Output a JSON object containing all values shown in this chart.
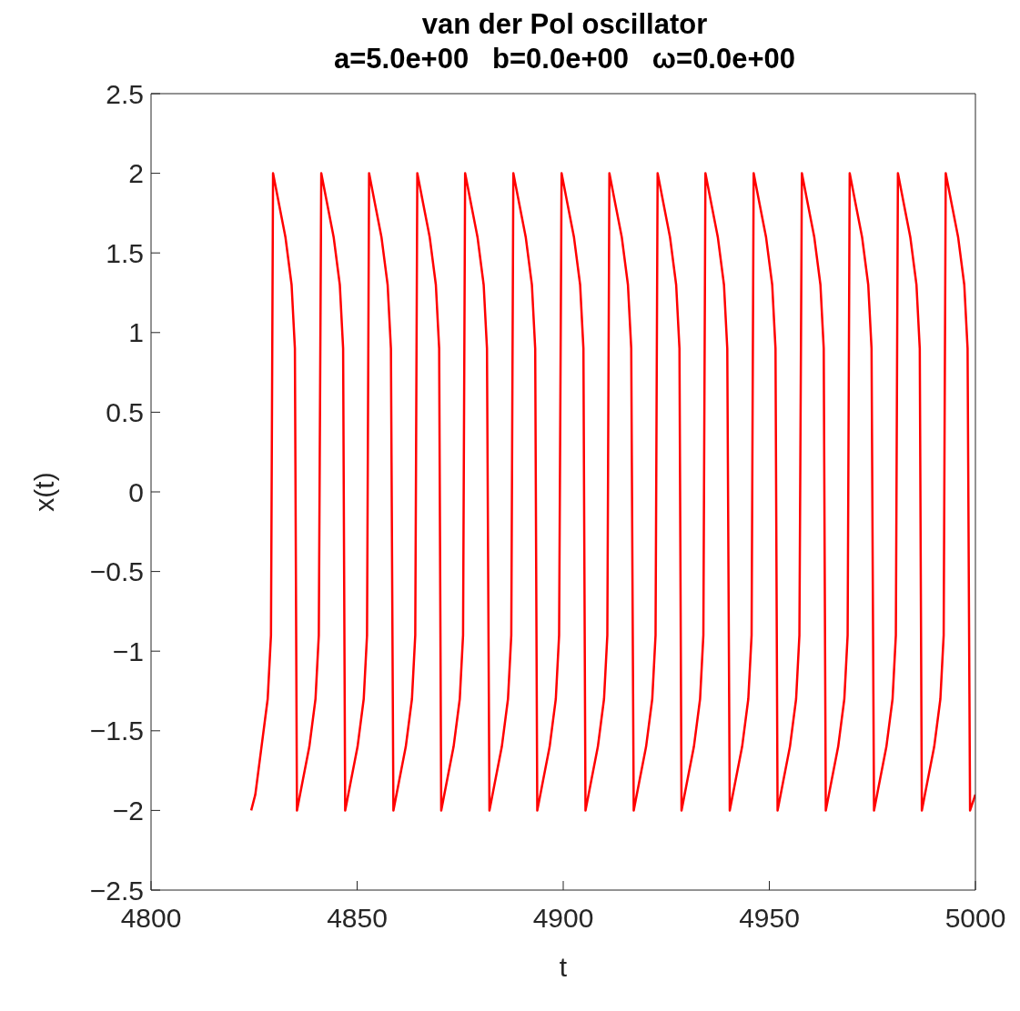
{
  "chart_data": {
    "type": "line",
    "title": "van der Pol oscillator",
    "subtitle": "a=5.0e+00   b=0.0e+00   ω=0.0e+00",
    "xlabel": "t",
    "ylabel": "x(t)",
    "xlim": [
      4800,
      5000
    ],
    "xticks": [
      4800,
      4850,
      4900,
      4950,
      5000
    ],
    "ylim": [
      -2.5,
      2.5
    ],
    "yticks": [
      {
        "value": -2.5,
        "label": "−2.5"
      },
      {
        "value": -2,
        "label": "−2"
      },
      {
        "value": -1.5,
        "label": "−1.5"
      },
      {
        "value": -1,
        "label": "−1"
      },
      {
        "value": -0.5,
        "label": "−0.5"
      },
      0,
      0.5,
      1,
      1.5,
      2,
      2.5
    ],
    "series": [
      {
        "color": "#ff0000",
        "x": [
          4824.3,
          4825.3,
          4826.8,
          4828.3,
          4829.1,
          4829.6,
          4831.1,
          4832.6,
          4834.1,
          4834.9,
          4835.4,
          4836.9,
          4838.4,
          4839.9,
          4840.7,
          4841.3,
          4842.8,
          4844.3,
          4845.8,
          4846.6,
          4847.1,
          4848.6,
          4850.1,
          4851.6,
          4852.4,
          4852.9,
          4854.4,
          4855.9,
          4857.4,
          4858.2,
          4858.8,
          4860.3,
          4861.8,
          4863.3,
          4864.1,
          4864.6,
          4866.1,
          4867.6,
          4869.1,
          4869.9,
          4870.4,
          4871.9,
          4873.4,
          4874.9,
          4875.7,
          4876.2,
          4877.7,
          4879.2,
          4880.7,
          4881.5,
          4882.1,
          4883.6,
          4885.1,
          4886.6,
          4887.4,
          4887.9,
          4889.4,
          4890.9,
          4892.4,
          4893.2,
          4893.7,
          4895.2,
          4896.7,
          4898.2,
          4899.0,
          4899.6,
          4901.1,
          4902.6,
          4904.1,
          4904.9,
          4905.4,
          4906.9,
          4908.4,
          4909.9,
          4910.7,
          4911.2,
          4912.7,
          4914.2,
          4915.7,
          4916.5,
          4917.1,
          4918.6,
          4920.1,
          4921.6,
          4922.4,
          4922.9,
          4924.4,
          4925.9,
          4927.4,
          4928.2,
          4928.7,
          4930.2,
          4931.7,
          4933.2,
          4934.0,
          4934.5,
          4936.0,
          4937.5,
          4939.0,
          4939.8,
          4940.4,
          4941.9,
          4943.4,
          4944.9,
          4945.7,
          4946.2,
          4947.7,
          4949.2,
          4950.7,
          4951.5,
          4952.0,
          4953.5,
          4955.0,
          4956.5,
          4957.3,
          4957.9,
          4959.4,
          4960.9,
          4962.4,
          4963.2,
          4963.7,
          4965.2,
          4966.7,
          4968.2,
          4969.0,
          4969.5,
          4971.0,
          4972.5,
          4974.0,
          4974.8,
          4975.4,
          4976.9,
          4978.4,
          4979.9,
          4980.7,
          4981.2,
          4982.7,
          4984.2,
          4985.7,
          4986.5,
          4987.0,
          4988.5,
          4990.0,
          4991.5,
          4992.3,
          4992.8,
          4994.3,
          4995.8,
          4997.3,
          4998.1,
          4998.7,
          5000.0
        ],
        "values": [
          -2,
          -1.9,
          -1.6,
          -1.3,
          -0.9,
          2,
          1.8,
          1.6,
          1.3,
          0.9,
          -2,
          -1.8,
          -1.6,
          -1.3,
          -0.9,
          2,
          1.8,
          1.6,
          1.3,
          0.9,
          -2,
          -1.8,
          -1.6,
          -1.3,
          -0.9,
          2,
          1.8,
          1.6,
          1.3,
          0.9,
          -2,
          -1.8,
          -1.6,
          -1.3,
          -0.9,
          2,
          1.8,
          1.6,
          1.3,
          0.9,
          -2,
          -1.8,
          -1.6,
          -1.3,
          -0.9,
          2,
          1.8,
          1.6,
          1.3,
          0.9,
          -2,
          -1.8,
          -1.6,
          -1.3,
          -0.9,
          2,
          1.8,
          1.6,
          1.3,
          0.9,
          -2,
          -1.8,
          -1.6,
          -1.3,
          -0.9,
          2,
          1.8,
          1.6,
          1.3,
          0.9,
          -2,
          -1.8,
          -1.6,
          -1.3,
          -0.9,
          2,
          1.8,
          1.6,
          1.3,
          0.9,
          -2,
          -1.8,
          -1.6,
          -1.3,
          -0.9,
          2,
          1.8,
          1.6,
          1.3,
          0.9,
          -2,
          -1.8,
          -1.6,
          -1.3,
          -0.9,
          2,
          1.8,
          1.6,
          1.3,
          0.9,
          -2,
          -1.8,
          -1.6,
          -1.3,
          -0.9,
          2,
          1.8,
          1.6,
          1.3,
          0.9,
          -2,
          -1.8,
          -1.6,
          -1.3,
          -0.9,
          2,
          1.8,
          1.6,
          1.3,
          0.9,
          -2,
          -1.8,
          -1.6,
          -1.3,
          -0.9,
          2,
          1.8,
          1.6,
          1.3,
          0.9,
          -2,
          -1.8,
          -1.6,
          -1.3,
          -0.9,
          2,
          1.8,
          1.6,
          1.3,
          0.9,
          -2,
          -1.8,
          -1.6,
          -1.3,
          -0.9,
          2,
          1.8,
          1.6,
          1.3,
          0.9,
          -2,
          -1.9
        ]
      }
    ]
  }
}
